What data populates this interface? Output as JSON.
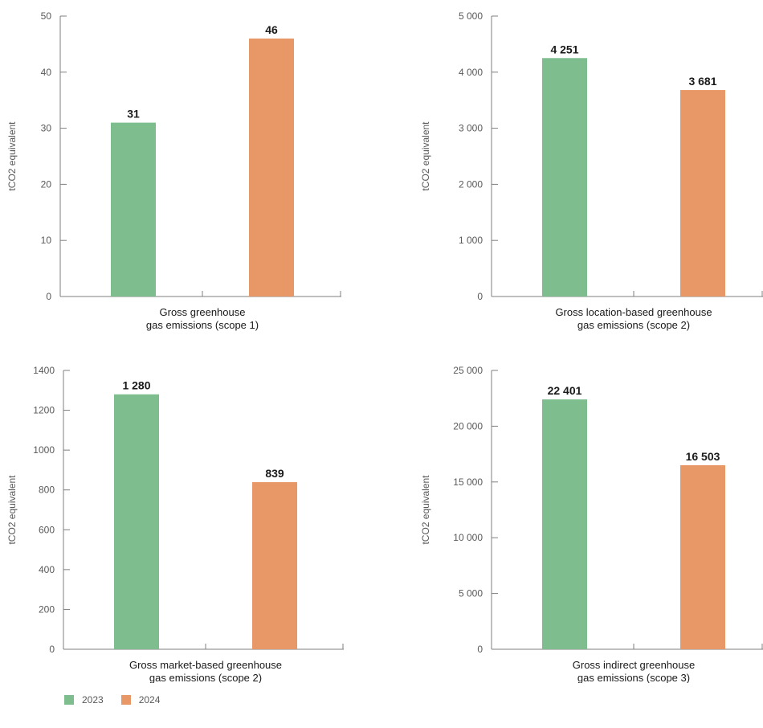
{
  "legend": [
    {
      "label": "2023",
      "color": "#7dbd8e"
    },
    {
      "label": "2024",
      "color": "#e89766"
    }
  ],
  "chart_data": [
    {
      "type": "bar",
      "ylabel": "tCO2 equivalent",
      "category_label": [
        "Gross greenhouse",
        "gas emissions (scope 1)"
      ],
      "series": [
        {
          "name": "2023",
          "values": [
            31
          ]
        },
        {
          "name": "2024",
          "values": [
            46
          ]
        }
      ],
      "value_labels": [
        "31",
        "46"
      ],
      "ylim": [
        0,
        50
      ],
      "yticks": [
        0,
        10,
        20,
        30,
        40,
        50
      ],
      "ytick_labels": [
        "0",
        "10",
        "20",
        "30",
        "40",
        "50"
      ]
    },
    {
      "type": "bar",
      "ylabel": "tCO2 equivalent",
      "category_label": [
        "Gross location-based greenhouse",
        "gas emissions (scope 2)"
      ],
      "series": [
        {
          "name": "2023",
          "values": [
            4251
          ]
        },
        {
          "name": "2024",
          "values": [
            3681
          ]
        }
      ],
      "value_labels": [
        "4 251",
        "3 681"
      ],
      "ylim": [
        0,
        5000
      ],
      "yticks": [
        0,
        1000,
        2000,
        3000,
        4000,
        5000
      ],
      "ytick_labels": [
        "0",
        "1 000",
        "2 000",
        "3 000",
        "4 000",
        "5 000"
      ]
    },
    {
      "type": "bar",
      "ylabel": "tCO2 equivalent",
      "category_label": [
        "Gross market-based greenhouse",
        "gas emissions (scope 2)"
      ],
      "series": [
        {
          "name": "2023",
          "values": [
            1280
          ]
        },
        {
          "name": "2024",
          "values": [
            839
          ]
        }
      ],
      "value_labels": [
        "1 280",
        "839"
      ],
      "ylim": [
        0,
        1400
      ],
      "yticks": [
        0,
        200,
        400,
        600,
        800,
        1000,
        1200,
        1400
      ],
      "ytick_labels": [
        "0",
        "200",
        "400",
        "600",
        "800",
        "1000",
        "1200",
        "1400"
      ]
    },
    {
      "type": "bar",
      "ylabel": "tCO2 equivalent",
      "category_label": [
        "Gross indirect greenhouse",
        "gas emissions (scope 3)"
      ],
      "series": [
        {
          "name": "2023",
          "values": [
            22401
          ]
        },
        {
          "name": "2024",
          "values": [
            16503
          ]
        }
      ],
      "value_labels": [
        "22 401",
        "16 503"
      ],
      "ylim": [
        0,
        25000
      ],
      "yticks": [
        0,
        5000,
        10000,
        15000,
        20000,
        25000
      ],
      "ytick_labels": [
        "0",
        "5 000",
        "10 000",
        "15 000",
        "20 000",
        "25 000"
      ]
    }
  ]
}
